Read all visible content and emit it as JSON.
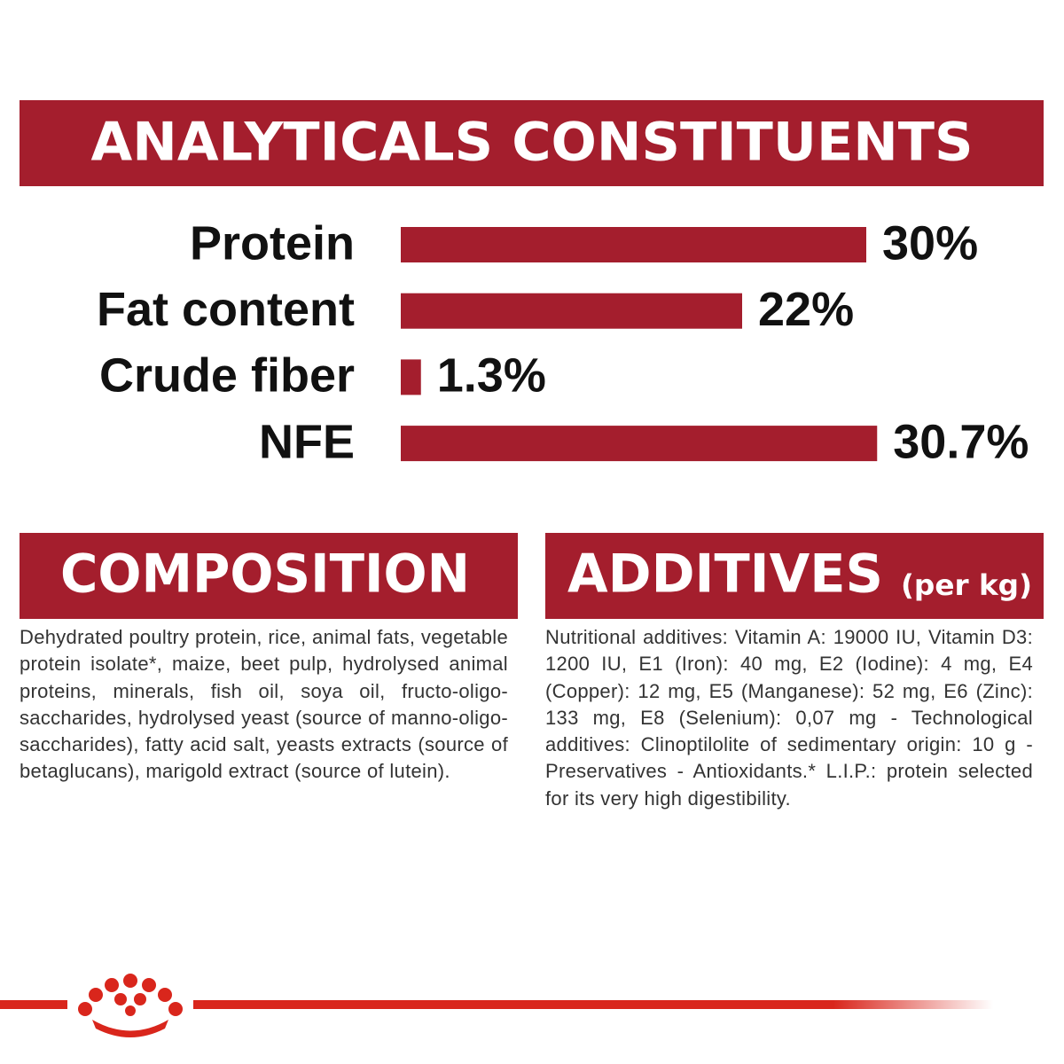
{
  "chart_data": {
    "type": "bar",
    "title": "ANALYTICALS CONSTITUENTS",
    "categories": [
      "Protein",
      "Fat content",
      "Crude fiber",
      "NFE"
    ],
    "values": [
      30,
      22,
      1.3,
      30.7
    ],
    "value_labels": [
      "30%",
      "22%",
      "1.3%",
      "30.7%"
    ],
    "color": "#a41e2d"
  },
  "composition": {
    "title": "COMPOSITION",
    "text": "Dehydrated poultry protein, rice, animal fats, vegetable protein isolate*, maize, beet pulp, hydrolysed animal proteins, minerals, fish oil, soya oil, fructo-oligo-saccharides, hydrolysed yeast (source of manno-oligo-saccharides), fatty acid salt, yeasts extracts (source of betaglucans), marigold extract (source of lutein)."
  },
  "additives": {
    "title": "ADDITIVES",
    "subtitle": "(per kg)",
    "text": "Nutritional additives: Vitamin A: 19000 IU, Vitamin D3: 1200 IU, E1 (Iron): 40 mg, E2 (Iodine): 4 mg, E4 (Copper): 12 mg, E5 (Manganese): 52 mg, E6 (Zinc): 133 mg, E8 (Selenium): 0,07 mg - Technological additives: Clinoptilolite of sedimentary origin: 10 g - Preservatives - Antioxidants.* L.I.P.: protein selected for its very high digestibility."
  }
}
